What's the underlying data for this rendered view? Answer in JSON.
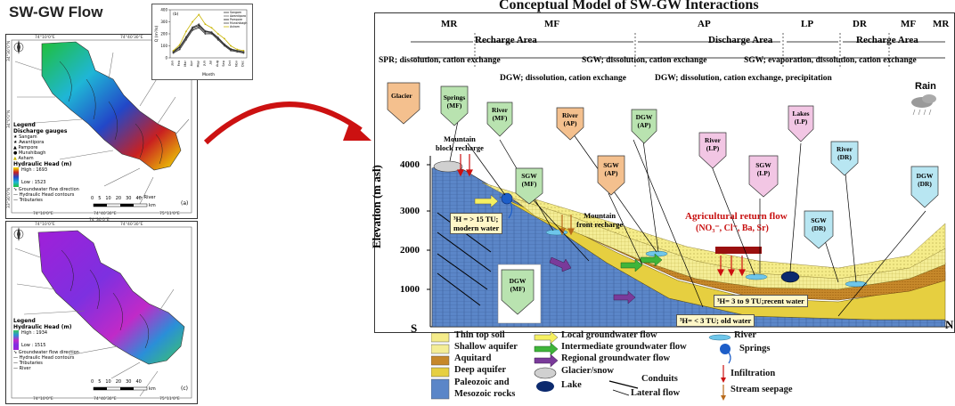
{
  "left_title": "SW-GW Flow",
  "right_title": "Conceptual Model of SW-GW Interactions",
  "map_a": {
    "coords_top": [
      "74°10'0\"E",
      "74°40'30\"E"
    ],
    "coords_bottom": [
      "74°10'0\"E",
      "74°40'30\"E",
      "75°11'0\"E"
    ],
    "coords_bottom2": [
      "74°30'0\"E"
    ],
    "coords_left": [
      "34°30'0\"N",
      "34°0'0\"N",
      "33°30'0\"N"
    ],
    "legend_title": "Legend",
    "legend_gauges": "Discharge gauges",
    "gauges": [
      "Sangam",
      "Awantipora",
      "Pampore",
      "Munshibagh",
      "Asham"
    ],
    "head_title": "Hydraulic Head (m)",
    "high": "High : 1693",
    "low": "Low : 1523",
    "flow_direction": "Groundwater flow direction",
    "contours": "Hydraulic Head contours",
    "tributaries": "Tributaries",
    "river": "River",
    "scale": [
      "0",
      "5",
      "10",
      "20",
      "30",
      "40"
    ],
    "scale_unit": "km",
    "panel_letter": "(a)"
  },
  "map_c": {
    "coords_top": [
      "74°10'0\"E",
      "74°40'30\"E"
    ],
    "coords_bottom": [
      "74°10'0\"E",
      "74°40'30\"E",
      "75°11'0\"E"
    ],
    "legend_title": "Legend",
    "head_title": "Hydraulic Head (m)",
    "high": "High : 1934",
    "low": "Low : 1515",
    "flow_direction": "Groundwater flow direction",
    "contours": "Hydraulic Head contours",
    "tributaries": "Tributaries",
    "river": "River",
    "scale": [
      "0",
      "5",
      "10",
      "20",
      "30",
      "40"
    ],
    "scale_unit": "km",
    "panel_letter": "(c)"
  },
  "chart_data": {
    "type": "line",
    "panel_letter": "(b)",
    "categories": [
      "Jan",
      "Feb",
      "Mar",
      "Apr",
      "May",
      "Jun",
      "Jul",
      "Aug",
      "Sep",
      "Oct",
      "Nov",
      "Dec"
    ],
    "xlabel": "Month",
    "ylabel": "Q (m³/s)",
    "ylim": [
      0,
      400
    ],
    "yticks": [
      0,
      100,
      200,
      300,
      400
    ],
    "legend_position": "top-right",
    "series": [
      {
        "name": "Sangam",
        "values": [
          40,
          70,
          150,
          230,
          250,
          200,
          200,
          150,
          100,
          60,
          50,
          40
        ],
        "color": "#333333"
      },
      {
        "name": "Awantipora",
        "values": [
          45,
          80,
          160,
          240,
          260,
          210,
          205,
          160,
          105,
          65,
          55,
          45
        ],
        "color": "#666666"
      },
      {
        "name": "Pampore",
        "values": [
          50,
          90,
          170,
          250,
          270,
          220,
          210,
          165,
          110,
          70,
          60,
          50
        ],
        "color": "#111111"
      },
      {
        "name": "Munshibagh",
        "values": [
          55,
          95,
          175,
          255,
          280,
          225,
          215,
          170,
          115,
          75,
          62,
          52
        ],
        "color": "#444444"
      },
      {
        "name": "Asham",
        "values": [
          60,
          110,
          220,
          300,
          360,
          280,
          250,
          200,
          160,
          100,
          70,
          60
        ],
        "color": "#c8b400"
      }
    ]
  },
  "diagram": {
    "zones": [
      "MR",
      "MF",
      "AP",
      "LP",
      "DR",
      "MF",
      "MR"
    ],
    "recharge_left": "Recharge Area",
    "discharge": "Discharge Area",
    "recharge_right": "Recharge Area",
    "proc1_left": "SPR; dissolution, cation exchange",
    "proc1_mid": "SGW; dissolution, cation exchange",
    "proc1_right": "SGW; evaporation,  dissolution, cation exchange",
    "proc2_left": "DGW; dissolution, cation exchange",
    "proc2_right": "DGW; dissolution, cation exchange, precipitation",
    "rain": "Rain",
    "glacier": "Glacier",
    "springs": [
      "Springs",
      "(MF)"
    ],
    "river_mf": [
      "River",
      "(MF)"
    ],
    "river_ap": [
      "River",
      "(AP)"
    ],
    "dgw_ap": [
      "DGW",
      "(AP)"
    ],
    "river_lp": [
      "River",
      "(LP)"
    ],
    "lakes_lp": [
      "Lakes",
      "(LP)"
    ],
    "river_dr": [
      "River",
      "(DR)"
    ],
    "dgw_dr": [
      "DGW",
      "(DR)"
    ],
    "sgw_mf": [
      "SGW",
      "(MF)"
    ],
    "sgw_ap": [
      "SGW",
      "(AP)"
    ],
    "sgw_lp": [
      "SGW",
      "(LP)"
    ],
    "sgw_dr": [
      "SGW",
      "(DR)"
    ],
    "dgw_mf": [
      "DGW",
      "(MF)"
    ],
    "mountain_block": [
      "Mountain",
      "block recharge"
    ],
    "mountain_front": [
      "Mountain",
      "front recharge"
    ],
    "agri": "Agricultural return flow",
    "agri_ions": "(NO₃⁻, Cl⁻, Ba, Sr)",
    "tritium_modern": [
      "³H = > 15 TU;",
      "modern water"
    ],
    "tritium_recent": "³H= 3 to 9 TU;recent water",
    "tritium_old": "³H= < 3 TU; old water",
    "elev_label": "Elevation  (m asl)",
    "elev_ticks": [
      "4000",
      "3000",
      "2000",
      "1000"
    ],
    "s_label": "S",
    "n_label": "N"
  },
  "legend": {
    "thin_soil": "Thin top soil",
    "shallow": "Shallow aquifer",
    "aquitard": "Aquitard",
    "deep": "Deep aquifer",
    "paleozoic": [
      "Paleozoic and",
      "Mesozoic rocks"
    ],
    "local": "Local groundwater flow",
    "intermediate": "Intermediate groundwater flow",
    "regional": "Regional groundwater flow",
    "glacier": "Glacier/snow",
    "lake": "Lake",
    "conduits": "Conduits",
    "lateral": "Lateral flow",
    "river": "River",
    "springs": "Springs",
    "infiltration": "Infiltration",
    "seepage": "Stream seepage"
  },
  "colors": {
    "accent_red": "#cc1111",
    "yellow_layer": "#f2e96a",
    "aquitard": "#c88a2a",
    "deep_aquifer": "#e8d24a",
    "rock_blue": "#6a8fc8",
    "pentagon_green": "#b9e3b0",
    "pentagon_orange": "#f4c08e",
    "pentagon_pink": "#f2c6e4",
    "pentagon_cyan": "#b8e6f2"
  }
}
